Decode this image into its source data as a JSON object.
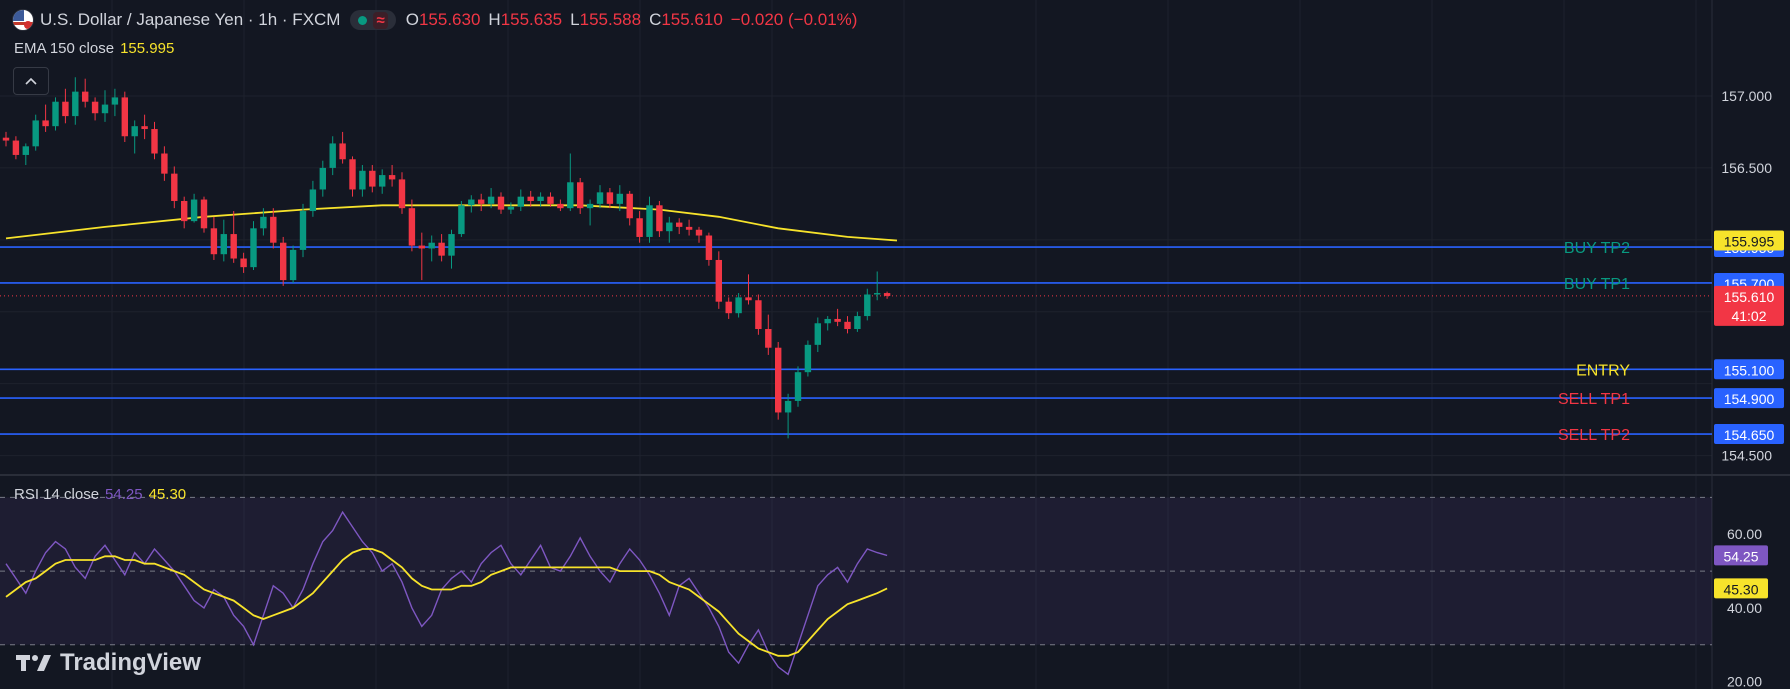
{
  "header": {
    "title": "U.S. Dollar / Japanese Yen · 1h · FXCM",
    "wave_glyph": "≈",
    "open_label": "O",
    "open": "155.630",
    "high_label": "H",
    "high": "155.635",
    "low_label": "L",
    "low": "155.588",
    "close_label": "C",
    "close": "155.610",
    "change": "−0.020 (−0.01%)"
  },
  "ema": {
    "label": "EMA 150 close",
    "value": "155.995"
  },
  "rsi": {
    "label": "RSI 14 close",
    "value": "54.25",
    "ma_value": "45.30"
  },
  "collapse_icon": "chevron-up-icon",
  "brand": {
    "name": "TradingView"
  },
  "colors": {
    "background": "#131722",
    "up": "#089981",
    "down": "#f23645",
    "ema": "#f7e32b",
    "level": "#2962ff",
    "rsi": "#7e57c2",
    "rsi_ma": "#f7e32b"
  },
  "chart_data": [
    {
      "type": "candlestick",
      "y_axis": {
        "min": 154.4,
        "max": 157.25,
        "ticks": [
          157.0,
          156.5,
          154.5
        ],
        "tick_labels": [
          "157.000",
          "156.500",
          "154.500"
        ]
      },
      "price_tags": [
        {
          "text": "155.995",
          "value": 155.995,
          "color": "#f7e32b"
        },
        {
          "text": "155.610",
          "value": 155.61,
          "color": "#f23645",
          "sub": "41:02"
        }
      ],
      "levels": [
        {
          "label": "BUY TP2",
          "price": 155.95,
          "price_label": "155.950",
          "label_color": "#089981"
        },
        {
          "label": "BUY TP1",
          "price": 155.7,
          "price_label": "155.700",
          "label_color": "#089981"
        },
        {
          "label": "ENTRY",
          "price": 155.1,
          "price_label": "155.100",
          "label_color": "#f7e32b"
        },
        {
          "label": "SELL TP1",
          "price": 154.9,
          "price_label": "154.900",
          "label_color": "#f23645"
        },
        {
          "label": "SELL TP2",
          "price": 154.65,
          "price_label": "154.650",
          "label_color": "#f23645"
        }
      ],
      "current_price": 155.61,
      "candles": [
        [
          156.71,
          156.75,
          156.65,
          156.69
        ],
        [
          156.69,
          156.72,
          156.56,
          156.59
        ],
        [
          156.59,
          156.67,
          156.52,
          156.65
        ],
        [
          156.65,
          156.87,
          156.62,
          156.83
        ],
        [
          156.83,
          156.94,
          156.75,
          156.79
        ],
        [
          156.79,
          156.99,
          156.76,
          156.96
        ],
        [
          156.96,
          157.05,
          156.81,
          156.86
        ],
        [
          156.86,
          157.13,
          156.8,
          157.03
        ],
        [
          157.03,
          157.12,
          156.92,
          156.96
        ],
        [
          156.96,
          156.99,
          156.83,
          156.88
        ],
        [
          156.88,
          157.04,
          156.82,
          156.94
        ],
        [
          156.94,
          157.05,
          156.86,
          156.99
        ],
        [
          156.99,
          157.03,
          156.68,
          156.72
        ],
        [
          156.72,
          156.83,
          156.6,
          156.79
        ],
        [
          156.79,
          156.87,
          156.7,
          156.77
        ],
        [
          156.77,
          156.82,
          156.56,
          156.6
        ],
        [
          156.6,
          156.65,
          156.41,
          156.46
        ],
        [
          156.46,
          156.51,
          156.22,
          156.27
        ],
        [
          156.27,
          156.3,
          156.08,
          156.13
        ],
        [
          156.13,
          156.32,
          156.12,
          156.28
        ],
        [
          156.28,
          156.3,
          156.05,
          156.08
        ],
        [
          156.08,
          156.16,
          155.86,
          155.9
        ],
        [
          155.9,
          156.14,
          155.85,
          156.04
        ],
        [
          156.04,
          156.2,
          155.84,
          155.87
        ],
        [
          155.87,
          155.91,
          155.77,
          155.81
        ],
        [
          155.81,
          156.13,
          155.79,
          156.08
        ],
        [
          156.08,
          156.22,
          156.03,
          156.16
        ],
        [
          156.16,
          156.22,
          155.94,
          155.98
        ],
        [
          155.98,
          156.02,
          155.68,
          155.72
        ],
        [
          155.72,
          155.96,
          155.7,
          155.93
        ],
        [
          155.93,
          156.25,
          155.88,
          156.2
        ],
        [
          156.2,
          156.41,
          156.16,
          156.35
        ],
        [
          156.35,
          156.55,
          156.3,
          156.5
        ],
        [
          156.5,
          156.72,
          156.45,
          156.67
        ],
        [
          156.67,
          156.75,
          156.53,
          156.56
        ],
        [
          156.56,
          156.58,
          156.3,
          156.35
        ],
        [
          156.35,
          156.52,
          156.3,
          156.48
        ],
        [
          156.48,
          156.52,
          156.33,
          156.37
        ],
        [
          156.37,
          156.49,
          156.32,
          156.45
        ],
        [
          156.45,
          156.52,
          156.37,
          156.42
        ],
        [
          156.42,
          156.47,
          156.18,
          156.22
        ],
        [
          156.22,
          156.28,
          155.92,
          155.96
        ],
        [
          155.96,
          156.05,
          155.72,
          155.94
        ],
        [
          155.94,
          156.03,
          155.85,
          155.98
        ],
        [
          155.98,
          156.04,
          155.85,
          155.89
        ],
        [
          155.89,
          156.07,
          155.8,
          156.04
        ],
        [
          156.04,
          156.27,
          156.02,
          156.24
        ],
        [
          156.24,
          156.31,
          156.19,
          156.28
        ],
        [
          156.28,
          156.32,
          156.2,
          156.25
        ],
        [
          156.25,
          156.36,
          156.22,
          156.3
        ],
        [
          156.3,
          156.33,
          156.18,
          156.21
        ],
        [
          156.21,
          156.26,
          156.18,
          156.23
        ],
        [
          156.23,
          156.35,
          156.2,
          156.3
        ],
        [
          156.3,
          156.34,
          156.23,
          156.27
        ],
        [
          156.27,
          156.33,
          156.23,
          156.3
        ],
        [
          156.3,
          156.33,
          156.23,
          156.25
        ],
        [
          156.25,
          156.28,
          156.2,
          156.22
        ],
        [
          156.22,
          156.6,
          156.2,
          156.4
        ],
        [
          156.4,
          156.43,
          156.18,
          156.22
        ],
        [
          156.22,
          156.28,
          156.1,
          156.25
        ],
        [
          156.25,
          156.38,
          156.22,
          156.33
        ],
        [
          156.33,
          156.36,
          156.22,
          156.25
        ],
        [
          156.25,
          156.38,
          156.2,
          156.32
        ],
        [
          156.32,
          156.34,
          156.1,
          156.15
        ],
        [
          156.15,
          156.2,
          155.98,
          156.02
        ],
        [
          156.02,
          156.3,
          155.98,
          156.24
        ],
        [
          156.24,
          156.27,
          156.02,
          156.06
        ],
        [
          156.06,
          156.16,
          155.98,
          156.12
        ],
        [
          156.12,
          156.15,
          156.04,
          156.09
        ],
        [
          156.09,
          156.14,
          156.03,
          156.07
        ],
        [
          156.07,
          156.09,
          155.98,
          156.03
        ],
        [
          156.03,
          156.05,
          155.82,
          155.86
        ],
        [
          155.86,
          155.92,
          155.52,
          155.57
        ],
        [
          155.57,
          155.6,
          155.45,
          155.49
        ],
        [
          155.49,
          155.63,
          155.46,
          155.6
        ],
        [
          155.6,
          155.76,
          155.55,
          155.58
        ],
        [
          155.58,
          155.62,
          155.34,
          155.38
        ],
        [
          155.38,
          155.48,
          155.2,
          155.25
        ],
        [
          155.25,
          155.29,
          154.75,
          154.8
        ],
        [
          154.8,
          154.93,
          154.62,
          154.88
        ],
        [
          154.88,
          155.12,
          154.84,
          155.08
        ],
        [
          155.08,
          155.3,
          155.05,
          155.27
        ],
        [
          155.27,
          155.46,
          155.22,
          155.42
        ],
        [
          155.42,
          155.47,
          155.37,
          155.45
        ],
        [
          155.45,
          155.52,
          155.4,
          155.43
        ],
        [
          155.43,
          155.47,
          155.35,
          155.38
        ],
        [
          155.38,
          155.5,
          155.36,
          155.47
        ],
        [
          155.47,
          155.66,
          155.44,
          155.62
        ],
        [
          155.62,
          155.78,
          155.58,
          155.63
        ],
        [
          155.63,
          155.64,
          155.59,
          155.61
        ]
      ],
      "ema150": [
        [
          0,
          156.01
        ],
        [
          10,
          156.09
        ],
        [
          20,
          156.16
        ],
        [
          30,
          156.21
        ],
        [
          38,
          156.24
        ],
        [
          48,
          156.24
        ],
        [
          58,
          156.24
        ],
        [
          66,
          156.21
        ],
        [
          72,
          156.16
        ],
        [
          78,
          156.08
        ],
        [
          85,
          156.02
        ],
        [
          90,
          155.995
        ]
      ]
    },
    {
      "type": "line",
      "y_axis": {
        "min": 18,
        "max": 72,
        "ticks": [
          60,
          40,
          20
        ],
        "tick_labels": [
          "60.00",
          "40.00",
          "20.00"
        ],
        "bands": [
          30,
          70
        ],
        "mid": 50
      },
      "price_tags": [
        {
          "text": "54.25",
          "value": 54.25,
          "color": "#7e57c2"
        },
        {
          "text": "45.30",
          "value": 45.3,
          "color": "#f7e32b"
        }
      ],
      "series": [
        {
          "name": "RSI",
          "color": "#7e57c2",
          "values": [
            52,
            48,
            44,
            50,
            55,
            58,
            56,
            51,
            48,
            54,
            57,
            53,
            49,
            55,
            52,
            56,
            53,
            50,
            46,
            42,
            40,
            45,
            43,
            38,
            35,
            30,
            38,
            46,
            44,
            40,
            45,
            52,
            58,
            61,
            66,
            62,
            58,
            55,
            50,
            52,
            47,
            40,
            35,
            38,
            45,
            48,
            50,
            47,
            52,
            55,
            57,
            52,
            49,
            53,
            57,
            51,
            50,
            54,
            59,
            54,
            50,
            47,
            52,
            56,
            53,
            49,
            44,
            38,
            46,
            48,
            44,
            40,
            35,
            28,
            25,
            30,
            34,
            28,
            24,
            22,
            30,
            38,
            46,
            49,
            51,
            47,
            52,
            56,
            55,
            54.25
          ]
        },
        {
          "name": "MA",
          "color": "#f7e32b",
          "values": [
            43,
            45,
            47,
            48,
            50,
            52,
            53,
            53,
            53,
            53,
            54,
            54,
            53,
            53,
            52,
            52,
            51,
            50,
            49,
            47,
            45,
            44,
            43,
            42,
            40,
            38,
            37,
            38,
            39,
            40,
            42,
            44,
            47,
            50,
            53,
            55,
            56,
            56,
            55,
            53,
            51,
            48,
            46,
            45,
            45,
            45,
            46,
            46,
            47,
            49,
            50,
            51,
            51,
            51,
            51,
            51,
            51,
            51,
            51,
            51,
            51,
            51,
            50,
            50,
            50,
            50,
            49,
            47,
            46,
            45,
            43,
            41,
            39,
            36,
            33,
            31,
            29,
            28,
            27,
            27,
            28,
            31,
            34,
            37,
            39,
            41,
            42,
            43,
            44,
            45.3
          ]
        }
      ]
    }
  ]
}
